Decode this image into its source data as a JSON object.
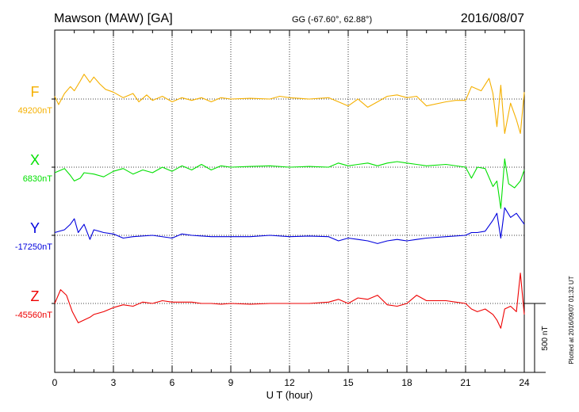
{
  "header": {
    "station": "Mawson (MAW)  [GA]",
    "coords": "GG (-67.60°,  62.88°)",
    "date": "2016/08/07"
  },
  "side_note": "Plotted at 2016/09/07 01:32 UT",
  "chart_data": {
    "type": "line",
    "xlabel": "U T (hour)",
    "xlim": [
      0,
      24
    ],
    "xticks": [
      "0",
      "3",
      "6",
      "9",
      "12",
      "15",
      "18",
      "21",
      "24"
    ],
    "scale_bar": "500 nT",
    "grid": "dotted, every 3 hours; dotted baseline per component",
    "series": [
      {
        "name": "F",
        "baseline_label": "49200nT",
        "baseline_nT": 49200,
        "color": "#f5b000",
        "points": [
          [
            0,
            20
          ],
          [
            0.2,
            -40
          ],
          [
            0.5,
            40
          ],
          [
            0.8,
            90
          ],
          [
            1.0,
            60
          ],
          [
            1.3,
            130
          ],
          [
            1.5,
            180
          ],
          [
            1.8,
            120
          ],
          [
            2.0,
            160
          ],
          [
            2.3,
            110
          ],
          [
            2.6,
            70
          ],
          [
            3.0,
            50
          ],
          [
            3.5,
            10
          ],
          [
            4.0,
            40
          ],
          [
            4.3,
            -20
          ],
          [
            4.7,
            30
          ],
          [
            5.0,
            -10
          ],
          [
            5.5,
            20
          ],
          [
            6.0,
            -20
          ],
          [
            6.5,
            10
          ],
          [
            7.0,
            -10
          ],
          [
            7.5,
            10
          ],
          [
            8.0,
            -20
          ],
          [
            8.5,
            10
          ],
          [
            9.0,
            0
          ],
          [
            10,
            5
          ],
          [
            11,
            0
          ],
          [
            11.5,
            20
          ],
          [
            12,
            10
          ],
          [
            13,
            0
          ],
          [
            14,
            10
          ],
          [
            14.5,
            -20
          ],
          [
            15,
            -50
          ],
          [
            15.5,
            0
          ],
          [
            16,
            -60
          ],
          [
            16.5,
            -20
          ],
          [
            17,
            20
          ],
          [
            17.5,
            30
          ],
          [
            18,
            10
          ],
          [
            18.5,
            20
          ],
          [
            19,
            -50
          ],
          [
            20,
            -20
          ],
          [
            20.5,
            -10
          ],
          [
            21,
            -10
          ],
          [
            21.3,
            90
          ],
          [
            21.8,
            60
          ],
          [
            22.2,
            150
          ],
          [
            22.4,
            40
          ],
          [
            22.6,
            -200
          ],
          [
            22.8,
            100
          ],
          [
            23.0,
            -250
          ],
          [
            23.3,
            -30
          ],
          [
            23.6,
            -150
          ],
          [
            23.8,
            -250
          ],
          [
            24,
            50
          ]
        ]
      },
      {
        "name": "X",
        "baseline_label": "6830nT",
        "baseline_nT": 6830,
        "color": "#00e000",
        "points": [
          [
            0,
            -40
          ],
          [
            0.5,
            -10
          ],
          [
            0.8,
            -60
          ],
          [
            1.0,
            -100
          ],
          [
            1.3,
            -80
          ],
          [
            1.5,
            -40
          ],
          [
            2.0,
            -50
          ],
          [
            2.5,
            -70
          ],
          [
            3.0,
            -30
          ],
          [
            3.5,
            -10
          ],
          [
            4.0,
            -50
          ],
          [
            4.5,
            -20
          ],
          [
            5.0,
            -40
          ],
          [
            5.5,
            0
          ],
          [
            6.0,
            -30
          ],
          [
            6.5,
            10
          ],
          [
            7.0,
            -20
          ],
          [
            7.5,
            20
          ],
          [
            8.0,
            -20
          ],
          [
            8.5,
            10
          ],
          [
            9,
            0
          ],
          [
            10,
            5
          ],
          [
            11,
            10
          ],
          [
            12,
            0
          ],
          [
            13,
            5
          ],
          [
            14,
            0
          ],
          [
            14.5,
            30
          ],
          [
            15,
            10
          ],
          [
            15.5,
            20
          ],
          [
            16,
            30
          ],
          [
            16.5,
            10
          ],
          [
            17,
            30
          ],
          [
            17.5,
            40
          ],
          [
            18,
            30
          ],
          [
            18.5,
            20
          ],
          [
            19,
            10
          ],
          [
            20,
            20
          ],
          [
            21,
            0
          ],
          [
            21.3,
            -80
          ],
          [
            21.6,
            0
          ],
          [
            22,
            -10
          ],
          [
            22.4,
            -140
          ],
          [
            22.6,
            -100
          ],
          [
            22.8,
            -300
          ],
          [
            23.0,
            60
          ],
          [
            23.2,
            -120
          ],
          [
            23.5,
            -150
          ],
          [
            23.8,
            -100
          ],
          [
            24,
            -20
          ]
        ]
      },
      {
        "name": "Y",
        "baseline_label": "-17250nT",
        "baseline_nT": -17250,
        "color": "#0000dd",
        "points": [
          [
            0,
            20
          ],
          [
            0.5,
            40
          ],
          [
            0.8,
            80
          ],
          [
            1.0,
            120
          ],
          [
            1.2,
            20
          ],
          [
            1.5,
            80
          ],
          [
            1.8,
            -30
          ],
          [
            2.0,
            40
          ],
          [
            2.5,
            20
          ],
          [
            3.0,
            10
          ],
          [
            3.5,
            -20
          ],
          [
            4.0,
            -10
          ],
          [
            5.0,
            0
          ],
          [
            6.0,
            -20
          ],
          [
            6.5,
            10
          ],
          [
            7.0,
            0
          ],
          [
            8.0,
            -10
          ],
          [
            9.0,
            -10
          ],
          [
            10,
            -10
          ],
          [
            11,
            0
          ],
          [
            12,
            -10
          ],
          [
            13,
            -5
          ],
          [
            14,
            -10
          ],
          [
            14.5,
            -40
          ],
          [
            15,
            -20
          ],
          [
            15.5,
            -30
          ],
          [
            16,
            -40
          ],
          [
            16.5,
            -60
          ],
          [
            17,
            -40
          ],
          [
            17.5,
            -30
          ],
          [
            18,
            -40
          ],
          [
            18.5,
            -30
          ],
          [
            19,
            -20
          ],
          [
            20,
            -10
          ],
          [
            21,
            0
          ],
          [
            21.3,
            20
          ],
          [
            21.6,
            20
          ],
          [
            22,
            30
          ],
          [
            22.4,
            110
          ],
          [
            22.6,
            160
          ],
          [
            22.8,
            -20
          ],
          [
            23.0,
            200
          ],
          [
            23.3,
            130
          ],
          [
            23.6,
            160
          ],
          [
            24,
            80
          ]
        ]
      },
      {
        "name": "Z",
        "baseline_label": "-45560nT",
        "baseline_nT": -45560,
        "color": "#ee0000",
        "points": [
          [
            0,
            0
          ],
          [
            0.3,
            100
          ],
          [
            0.6,
            60
          ],
          [
            0.9,
            -60
          ],
          [
            1.2,
            -140
          ],
          [
            1.5,
            -120
          ],
          [
            1.8,
            -100
          ],
          [
            2.0,
            -80
          ],
          [
            2.5,
            -60
          ],
          [
            3.0,
            -30
          ],
          [
            3.5,
            -10
          ],
          [
            4.0,
            -20
          ],
          [
            4.5,
            10
          ],
          [
            5.0,
            0
          ],
          [
            5.5,
            20
          ],
          [
            6.0,
            10
          ],
          [
            6.5,
            10
          ],
          [
            7.0,
            10
          ],
          [
            7.5,
            0
          ],
          [
            8.0,
            0
          ],
          [
            8.5,
            -5
          ],
          [
            9,
            0
          ],
          [
            10,
            -5
          ],
          [
            11,
            0
          ],
          [
            12,
            0
          ],
          [
            13,
            0
          ],
          [
            14,
            10
          ],
          [
            14.5,
            30
          ],
          [
            15,
            0
          ],
          [
            15.5,
            40
          ],
          [
            16,
            30
          ],
          [
            16.5,
            60
          ],
          [
            17,
            -10
          ],
          [
            17.5,
            -20
          ],
          [
            18,
            0
          ],
          [
            18.5,
            60
          ],
          [
            19,
            20
          ],
          [
            20,
            20
          ],
          [
            20.5,
            10
          ],
          [
            21,
            0
          ],
          [
            21.3,
            -40
          ],
          [
            21.6,
            -60
          ],
          [
            22,
            -40
          ],
          [
            22.4,
            -80
          ],
          [
            22.6,
            -120
          ],
          [
            22.8,
            -180
          ],
          [
            23.0,
            -40
          ],
          [
            23.3,
            -20
          ],
          [
            23.6,
            -60
          ],
          [
            23.8,
            220
          ],
          [
            24,
            -80
          ]
        ]
      }
    ]
  }
}
